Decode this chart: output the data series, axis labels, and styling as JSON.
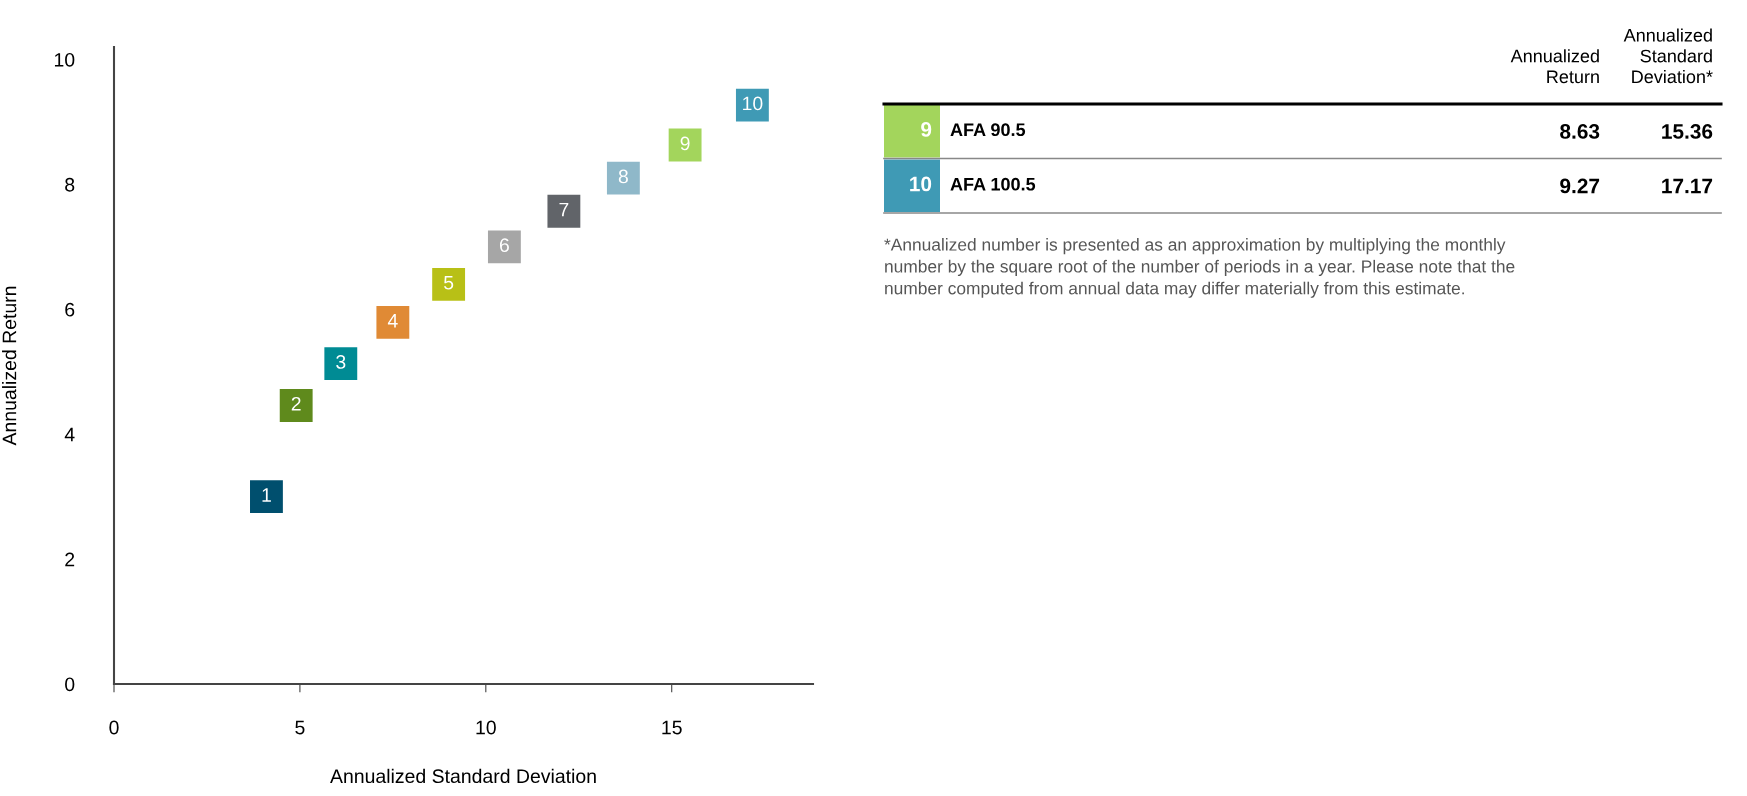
{
  "chart_data": [
    {
      "type": "scatter",
      "xlabel": "Annualized Standard Deviation",
      "ylabel": "Annualized Return",
      "x": [
        4.1,
        4.9,
        6.1,
        7.5,
        9.0,
        10.5,
        12.1,
        13.7,
        15.36,
        17.17
      ],
      "values": [
        3.0,
        4.46,
        5.13,
        5.79,
        6.4,
        7.0,
        7.57,
        8.1,
        8.63,
        9.27
      ],
      "colors": [
        "#004f6e",
        "#5f8a1c",
        "#008b94",
        "#e08a35",
        "#b8c016",
        "#a6a6a6",
        "#616469",
        "#8fb8c9",
        "#a3d55c",
        "#3f9ab5"
      ],
      "marker": "square",
      "annotations": [
        {
          "text": "1",
          "x": 4.1,
          "y": 3.0
        },
        {
          "text": "2",
          "x": 4.9,
          "y": 4.46
        },
        {
          "text": "3",
          "x": 6.1,
          "y": 5.13
        },
        {
          "text": "4",
          "x": 7.5,
          "y": 5.79
        },
        {
          "text": "5",
          "x": 9.0,
          "y": 6.4
        },
        {
          "text": "6",
          "x": 10.5,
          "y": 7.0
        },
        {
          "text": "7",
          "x": 12.1,
          "y": 7.57
        },
        {
          "text": "8",
          "x": 13.7,
          "y": 8.1
        },
        {
          "text": "9",
          "x": 15.36,
          "y": 8.63
        },
        {
          "text": "10",
          "x": 17.17,
          "y": 9.27
        }
      ],
      "xlim": [
        0,
        18.8
      ],
      "ylim": [
        0,
        10.2
      ],
      "xticks": [
        0,
        5,
        10,
        15
      ],
      "yticks": [
        0,
        2,
        4,
        6,
        8,
        10
      ],
      "grid": false,
      "legend": false
    },
    {
      "type": "other",
      "categories": [
        "AFA 90.5",
        "AFA 100.5"
      ],
      "colors": [
        "#a3d55c",
        "#3f9ab5"
      ],
      "series": [
        {
          "name": "Annualized\nReturn",
          "values": [
            8.63,
            9.27
          ]
        },
        {
          "name": "Annualized\nStandard\nDeviation*",
          "values": [
            15.36,
            17.17
          ]
        }
      ],
      "data_labels": true,
      "annotations": [
        "9",
        "10",
        "*Annualized number is presented as an approximation by multiplying the monthly\nnumber by the square root of the number of periods in a year. Please note that the\nnumber computed from annual data may differ materially from this estimate."
      ]
    }
  ]
}
